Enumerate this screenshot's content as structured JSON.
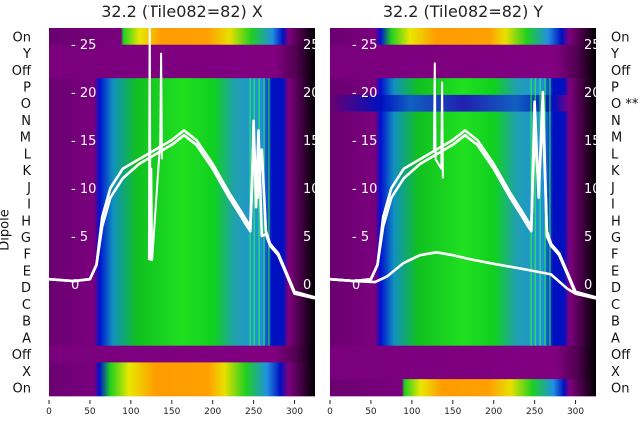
{
  "colors": {
    "purple": "#800080",
    "darkpurple": "#5e0060",
    "line": "#ffffff"
  },
  "chart_data": [
    {
      "type": "heatmap",
      "title": "32.2 (Tile082=82) X",
      "ylabel": "Dipole",
      "row_labels": [
        "On",
        "Y",
        "Off",
        "P",
        "O",
        "N",
        "M",
        "L",
        "K",
        "J",
        "I",
        "H",
        "G",
        "F",
        "E",
        "D",
        "C",
        "B",
        "A",
        "Off",
        "X",
        "On"
      ],
      "row_profiles": [
        "on_late",
        "off",
        "off",
        "mid",
        "mid",
        "mid",
        "mid",
        "mid",
        "mid",
        "mid",
        "mid",
        "mid",
        "mid",
        "mid",
        "mid",
        "mid",
        "mid",
        "mid",
        "mid",
        "off",
        "on",
        "on"
      ],
      "xticks": [
        0,
        50,
        100,
        150,
        200,
        250,
        300
      ],
      "xlim": [
        0,
        325
      ],
      "inner_yticks": [
        0,
        5,
        10,
        15,
        20,
        25
      ],
      "inner_ylim": [
        -2,
        27
      ],
      "series": [
        {
          "name": "trace1",
          "x": [
            0,
            30,
            50,
            58,
            65,
            75,
            90,
            110,
            130,
            150,
            165,
            180,
            200,
            220,
            235,
            242,
            246,
            248,
            250,
            253,
            256,
            260,
            265,
            270,
            280,
            290,
            300,
            325
          ],
          "y": [
            0.5,
            0.3,
            0.5,
            2,
            6,
            9,
            11,
            12.5,
            13.5,
            14.5,
            15.5,
            14.5,
            12,
            9,
            7,
            6,
            5.5,
            10,
            17,
            8,
            16,
            5,
            5.2,
            4,
            3,
            1,
            -1,
            -1.5
          ]
        },
        {
          "name": "trace2",
          "x": [
            0,
            30,
            50,
            58,
            65,
            75,
            90,
            110,
            130,
            150,
            165,
            180,
            200,
            220,
            235,
            242,
            246,
            250,
            255,
            260,
            265,
            270,
            280,
            290,
            300,
            325
          ],
          "y": [
            0.5,
            0.3,
            0.5,
            2,
            7,
            10,
            12,
            13,
            14,
            15,
            16,
            15,
            12.5,
            9.5,
            7.5,
            6.5,
            6,
            15,
            9,
            14,
            5.5,
            4.2,
            3.2,
            1.2,
            -0.8,
            -1.4
          ]
        },
        {
          "name": "spike",
          "x": [
            122,
            123,
            124,
            125,
            126,
            136,
            137,
            138
          ],
          "y": [
            2.5,
            29,
            2.5,
            12,
            2.5,
            15,
            24,
            13
          ]
        }
      ]
    },
    {
      "type": "heatmap",
      "title": "32.2 (Tile082=82) Y",
      "row_labels": [
        "On",
        "Y",
        "Off",
        "P",
        "O **",
        "N",
        "M",
        "L",
        "K",
        "J",
        "I",
        "H",
        "G",
        "F",
        "E",
        "D",
        "C",
        "B",
        "A",
        "Off",
        "X",
        "On"
      ],
      "row_profiles": [
        "on",
        "off",
        "off",
        "mid",
        "dark",
        "mid",
        "mid",
        "mid",
        "mid",
        "mid",
        "mid",
        "mid",
        "mid",
        "mid",
        "mid",
        "mid",
        "mid",
        "mid",
        "mid",
        "off",
        "off",
        "on_late"
      ],
      "xticks": [
        0,
        50,
        100,
        150,
        200,
        250,
        300
      ],
      "xlim": [
        0,
        325
      ],
      "inner_yticks": [
        0,
        5,
        10,
        15,
        20,
        25
      ],
      "inner_ylim": [
        -2,
        27
      ],
      "series": [
        {
          "name": "trace1",
          "x": [
            0,
            30,
            50,
            58,
            65,
            75,
            90,
            110,
            130,
            150,
            165,
            180,
            200,
            220,
            235,
            242,
            246,
            250,
            255,
            260,
            265,
            270,
            280,
            290,
            300,
            325
          ],
          "y": [
            0.5,
            0.3,
            0.5,
            2,
            6,
            9,
            11,
            12.5,
            13.5,
            14.5,
            15.5,
            14.5,
            12,
            9,
            7,
            6,
            5.5,
            19,
            9,
            20,
            5,
            4,
            3,
            1,
            -1,
            -1.5
          ]
        },
        {
          "name": "trace2",
          "x": [
            0,
            30,
            50,
            58,
            65,
            75,
            90,
            110,
            130,
            150,
            165,
            180,
            200,
            220,
            235,
            242,
            246,
            250,
            255,
            260,
            265,
            270,
            280,
            290,
            300,
            325
          ],
          "y": [
            0.5,
            0.3,
            0.5,
            2,
            7,
            10,
            12,
            13,
            14,
            15,
            16,
            15,
            12.5,
            9.5,
            7.5,
            6.5,
            6,
            16,
            10,
            18,
            5.5,
            4.2,
            3.2,
            1.2,
            -0.8,
            -1.4
          ]
        },
        {
          "name": "low_trace",
          "x": [
            0,
            30,
            55,
            70,
            90,
            110,
            130,
            150,
            170,
            200,
            240,
            270,
            290,
            300,
            325
          ],
          "y": [
            0.5,
            0.3,
            0.2,
            0.8,
            2.2,
            3,
            3.3,
            3,
            2.6,
            2.1,
            1.5,
            1,
            -0.5,
            -1,
            -1.5
          ]
        },
        {
          "name": "spike",
          "x": [
            127,
            128,
            129,
            136,
            137,
            138
          ],
          "y": [
            14,
            23,
            13,
            12,
            21,
            11
          ]
        }
      ]
    }
  ]
}
